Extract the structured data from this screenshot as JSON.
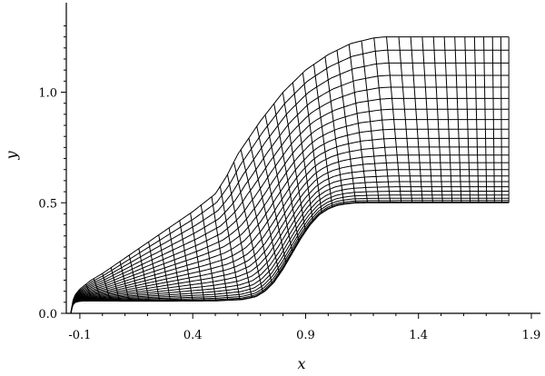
{
  "chart_data": {
    "type": "mesh",
    "title": "",
    "xlabel": "x",
    "ylabel": "y",
    "xlim": [
      -0.16,
      1.9
    ],
    "ylim": [
      0.0,
      1.33
    ],
    "xticks": [
      -0.1,
      0.4,
      0.9,
      1.4,
      1.9
    ],
    "yticks": [
      0.0,
      0.5,
      1.0
    ],
    "xtick_labels": [
      "-0.1",
      "0.4",
      "0.9",
      "1.4",
      "1.9"
    ],
    "ytick_labels": [
      "0.0",
      "0.5",
      "1.0"
    ],
    "grid": false,
    "line_color": "#000000",
    "lower_boundary": {
      "x": [
        -0.14,
        -0.135,
        -0.13,
        -0.12,
        -0.1,
        -0.05,
        0.1,
        0.3,
        0.5,
        0.62,
        0.68,
        0.72,
        0.76,
        0.8,
        0.84,
        0.88,
        0.92,
        0.96,
        1.0,
        1.04,
        1.08,
        1.12,
        1.18,
        1.3,
        1.5,
        1.8
      ],
      "y": [
        0.0,
        0.025,
        0.04,
        0.05,
        0.055,
        0.056,
        0.055,
        0.055,
        0.056,
        0.062,
        0.075,
        0.1,
        0.14,
        0.2,
        0.27,
        0.34,
        0.4,
        0.445,
        0.472,
        0.488,
        0.495,
        0.499,
        0.5,
        0.5,
        0.5,
        0.5
      ]
    },
    "upper_boundary": {
      "x": [
        -0.14,
        -0.13,
        -0.12,
        -0.1,
        -0.05,
        0.0,
        0.1,
        0.2,
        0.3,
        0.4,
        0.5,
        0.55,
        0.6,
        0.7,
        0.8,
        0.9,
        1.0,
        1.1,
        1.2,
        1.25,
        1.3,
        1.5,
        1.8
      ],
      "y": [
        0.0,
        0.06,
        0.085,
        0.11,
        0.15,
        0.18,
        0.25,
        0.32,
        0.39,
        0.46,
        0.54,
        0.62,
        0.72,
        0.87,
        1.0,
        1.1,
        1.17,
        1.22,
        1.245,
        1.25,
        1.25,
        1.25,
        1.25
      ]
    },
    "grid_lines": {
      "along_flow_count": 23,
      "across_flow_count": 48
    }
  }
}
